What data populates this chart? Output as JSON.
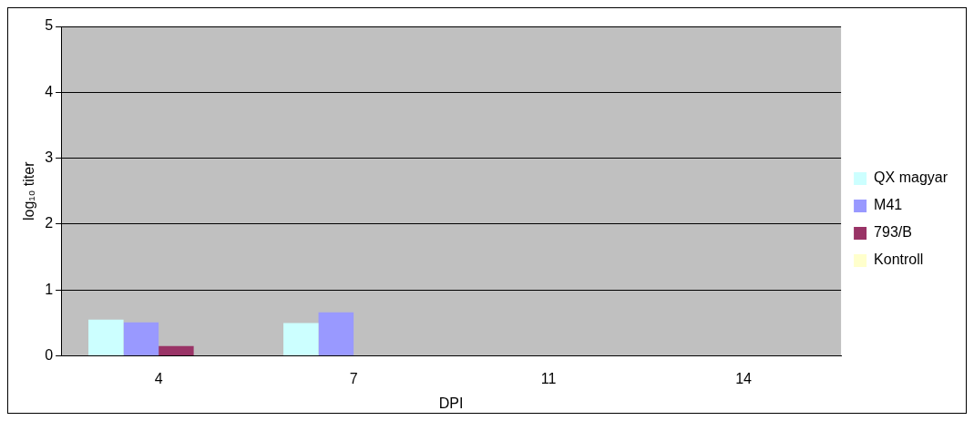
{
  "chart_data": {
    "type": "bar",
    "xlabel": "DPI",
    "ylabel": "log₁₀ titer",
    "categories": [
      "4",
      "7",
      "11",
      "14"
    ],
    "series": [
      {
        "name": "QX magyar",
        "color": "#ccffff",
        "values": [
          0.55,
          0.5,
          0,
          0
        ]
      },
      {
        "name": "M41",
        "color": "#9999ff",
        "values": [
          0.51,
          0.66,
          0,
          0
        ]
      },
      {
        "name": "793/B",
        "color": "#993366",
        "values": [
          0.15,
          0,
          0,
          0
        ]
      },
      {
        "name": "Kontroll",
        "color": "#ffffcc",
        "values": [
          0,
          0,
          0,
          0
        ]
      }
    ],
    "ylim": [
      0,
      5
    ],
    "yticks": [
      0,
      1,
      2,
      3,
      4,
      5
    ],
    "grid": "y",
    "legend": "right"
  }
}
